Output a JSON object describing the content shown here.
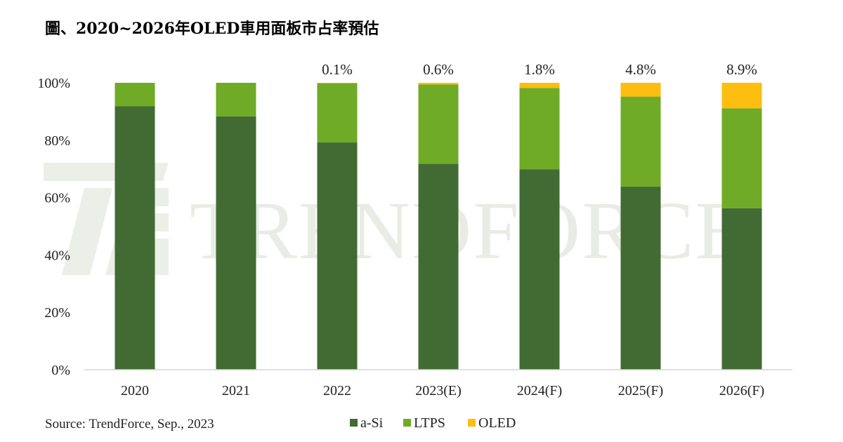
{
  "title": "圖、2020~2026年OLED車用面板市占率預估",
  "source": "Source: TrendForce, Sep., 2023",
  "watermark": "TRENDFORCE",
  "chart_data": {
    "type": "bar",
    "stacked": true,
    "categories": [
      "2020",
      "2021",
      "2022",
      "2023(E)",
      "2024(F)",
      "2025(F)",
      "2026(F)"
    ],
    "series": [
      {
        "name": "a-Si",
        "color": "#416b33",
        "values": [
          91.8,
          88.3,
          79.2,
          71.8,
          69.8,
          63.8,
          56.3
        ]
      },
      {
        "name": "LTPS",
        "color": "#6fab26",
        "values": [
          8.2,
          11.7,
          20.7,
          27.6,
          28.4,
          31.4,
          34.8
        ]
      },
      {
        "name": "OLED",
        "color": "#fdbe10",
        "values": [
          0,
          0,
          0.1,
          0.6,
          1.8,
          4.8,
          8.9
        ]
      }
    ],
    "data_labels": [
      "",
      "",
      "0.1%",
      "0.6%",
      "1.8%",
      "4.8%",
      "8.9%"
    ],
    "y_ticks": [
      "0%",
      "20%",
      "40%",
      "60%",
      "80%",
      "100%"
    ],
    "ylim": [
      0,
      100
    ],
    "grid": false,
    "legend_position": "bottom-center"
  }
}
